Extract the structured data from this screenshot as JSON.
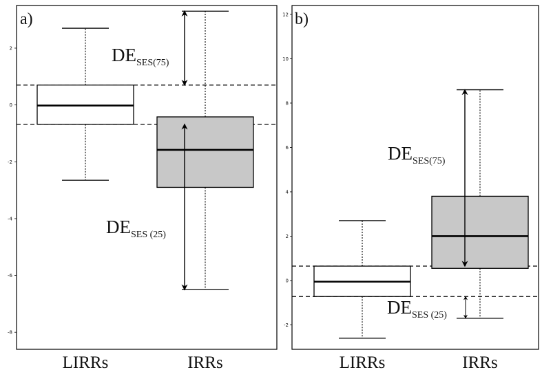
{
  "chart_data": [
    {
      "type": "box",
      "panel_label": "a)",
      "categories": [
        "LIRRs",
        "IRRs"
      ],
      "ylim": [
        -8.6,
        3.5
      ],
      "y_ticks": [
        2,
        0,
        -2,
        -4,
        -6,
        -8
      ],
      "y_tick_labels": [
        "2",
        "0",
        "-2",
        "-4",
        "-6",
        "-8"
      ],
      "boxes": [
        {
          "category": "LIRRs",
          "whisker_low": -2.65,
          "q1": -0.68,
          "median": -0.02,
          "q3": 0.7,
          "whisker_high": 2.7,
          "fill": "#ffffff"
        },
        {
          "category": "IRRs",
          "whisker_low": -6.5,
          "q1": -2.9,
          "median": -1.58,
          "q3": -0.42,
          "whisker_high": 3.3,
          "fill": "#c8c8c8"
        }
      ],
      "reference_lines": [
        0.7,
        -0.68
      ],
      "annotations": [
        {
          "main": "DE",
          "sub": "SES(75)",
          "arrow_from": 0.7,
          "arrow_to": 3.3
        },
        {
          "main": "DE",
          "sub": "SES (25)",
          "arrow_from": -0.68,
          "arrow_to": -6.5
        }
      ]
    },
    {
      "type": "box",
      "panel_label": "b)",
      "categories": [
        "LIRRs",
        "IRRs"
      ],
      "ylim": [
        -3.1,
        12.4
      ],
      "y_ticks": [
        12,
        10,
        8,
        6,
        4,
        2,
        0,
        -2
      ],
      "y_tick_labels": [
        "12",
        "10",
        "8",
        "6",
        "4",
        "2",
        "0",
        "-2"
      ],
      "boxes": [
        {
          "category": "LIRRs",
          "whisker_low": -2.6,
          "q1": -0.72,
          "median": -0.05,
          "q3": 0.65,
          "whisker_high": 2.7,
          "fill": "#ffffff"
        },
        {
          "category": "IRRs",
          "whisker_low": -1.7,
          "q1": 0.55,
          "median": 2.0,
          "q3": 3.8,
          "whisker_high": 8.6,
          "fill": "#c8c8c8"
        }
      ],
      "reference_lines": [
        0.65,
        -0.72
      ],
      "annotations": [
        {
          "main": "DE",
          "sub": "SES(75)",
          "arrow_from": 0.65,
          "arrow_to": 8.6
        },
        {
          "main": "DE",
          "sub": "SES (25)",
          "arrow_from": -0.72,
          "arrow_to": -1.7
        }
      ]
    }
  ]
}
